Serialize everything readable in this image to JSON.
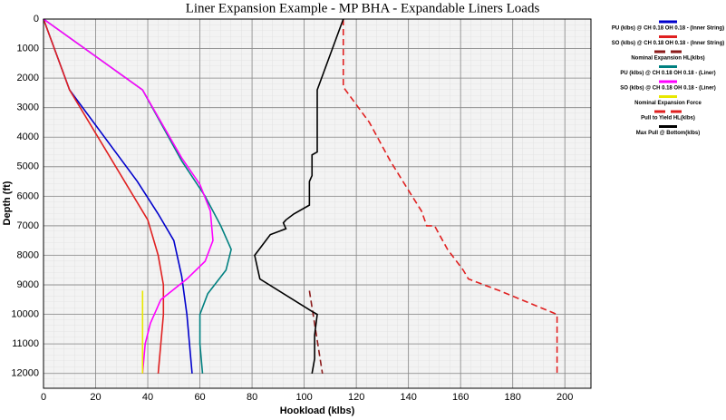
{
  "chart_data": {
    "type": "line",
    "title": "Liner Expansion Example - MP BHA - Expandable Liners Loads",
    "x_label": "Hookload (klbs)",
    "y_label": "Depth (ft)",
    "xlim": [
      0,
      210
    ],
    "xticks": [
      0,
      20,
      40,
      60,
      80,
      100,
      120,
      140,
      160,
      180,
      200
    ],
    "ylim": [
      12500,
      0
    ],
    "yticks": [
      0,
      1000,
      2000,
      3000,
      4000,
      5000,
      6000,
      7000,
      8000,
      9000,
      10000,
      11000,
      12000
    ],
    "grid": true,
    "legend": "right",
    "series": [
      {
        "name": "PU (klbs) @ CH 0.18 OH 0.18 - (Inner String)",
        "color": "#0000cc",
        "dashed": false,
        "x": [
          0,
          10,
          36,
          44,
          50,
          53,
          55,
          56,
          57
        ],
        "y": [
          0,
          2400,
          5500,
          6600,
          7500,
          8700,
          10000,
          11000,
          12000
        ]
      },
      {
        "name": "SO (klbs) @ CH 0.18 OH 0.18 - (Inner String)",
        "color": "#e02020",
        "dashed": false,
        "x": [
          0,
          10,
          40,
          44,
          46,
          46,
          45,
          44
        ],
        "y": [
          0,
          2400,
          6800,
          8000,
          9000,
          10000,
          11000,
          12000
        ]
      },
      {
        "name": "Nominal Expansion HL(klbs)",
        "color": "#8b1a1a",
        "dashed": true,
        "x": [
          102,
          107
        ],
        "y": [
          9200,
          12000
        ]
      },
      {
        "name": "PU (klbs) @ CH 0.18 OH 0.18 - (Liner)",
        "color": "#008080",
        "dashed": false,
        "x": [
          0,
          38,
          53,
          62,
          68,
          72,
          70,
          63,
          60,
          60,
          61
        ],
        "y": [
          0,
          2400,
          4800,
          6000,
          7000,
          7800,
          8500,
          9300,
          10000,
          11000,
          12000
        ]
      },
      {
        "name": "SO (klbs) @ CH 0.18 OH 0.18 - (Liner)",
        "color": "#ff00ff",
        "dashed": false,
        "x": [
          0,
          38,
          53,
          60,
          64,
          65,
          62,
          55,
          45,
          41,
          39,
          38
        ],
        "y": [
          0,
          2400,
          4700,
          5600,
          6500,
          7500,
          8200,
          8800,
          9500,
          10300,
          11000,
          12000
        ]
      },
      {
        "name": "Nominal Expansion Force",
        "color": "#e8e800",
        "dashed": false,
        "x": [
          38,
          38
        ],
        "y": [
          9200,
          12000
        ]
      },
      {
        "name": "Pull to Yield HL(klbs)",
        "color": "#e02020",
        "dashed": true,
        "x": [
          115,
          115,
          125,
          133,
          140,
          145,
          147,
          150,
          155,
          161,
          163,
          175,
          197,
          197
        ],
        "y": [
          0,
          2300,
          3500,
          4800,
          5800,
          6500,
          7000,
          7000,
          7800,
          8500,
          8800,
          9200,
          10000,
          12000
        ]
      },
      {
        "name": "Max Pull @ Bottom(klbs)",
        "color": "#000000",
        "dashed": false,
        "x": [
          115,
          105,
          105,
          103,
          103,
          102,
          102,
          96,
          93,
          92,
          93,
          87,
          81,
          83,
          103,
          105,
          104,
          104,
          103
        ],
        "y": [
          0,
          2400,
          4500,
          4600,
          5300,
          5500,
          6300,
          6600,
          6800,
          6900,
          7100,
          7300,
          8000,
          8800,
          9900,
          10000,
          10700,
          11500,
          12000
        ]
      }
    ]
  }
}
